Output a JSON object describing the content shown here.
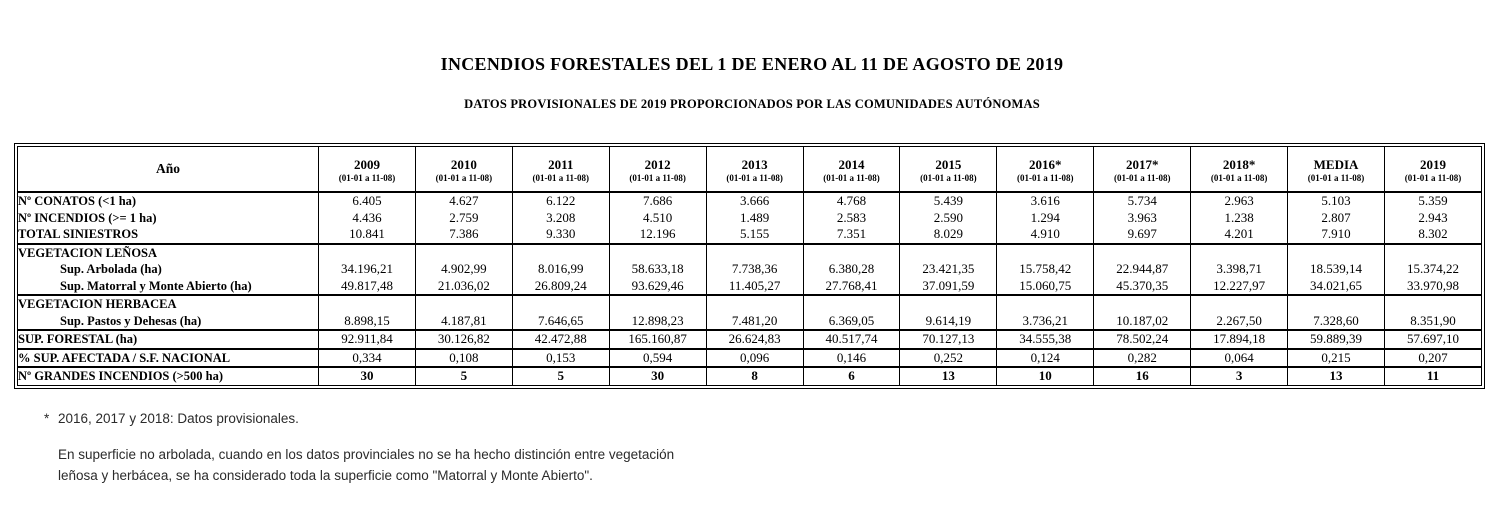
{
  "title": "INCENDIOS FORESTALES DEL 1 DE ENERO AL 11 DE AGOSTO DE 2019",
  "subtitle": "DATOS PROVISIONALES DE 2019 PROPORCIONADOS POR LAS COMUNIDADES AUTÓNOMAS",
  "table": {
    "corner_label": "Año",
    "period_label": "(01-01 a 11-08)",
    "year_columns": [
      "2009",
      "2010",
      "2011",
      "2012",
      "2013",
      "2014",
      "2015",
      "2016*",
      "2017*",
      "2018*",
      "MEDIA",
      "2019"
    ],
    "rows": [
      {
        "label": "Nº CONATOS (<1 ha)",
        "kind": "data",
        "values": [
          "6.405",
          "4.627",
          "6.122",
          "7.686",
          "3.666",
          "4.768",
          "5.439",
          "3.616",
          "5.734",
          "2.963",
          "5.103",
          "5.359"
        ]
      },
      {
        "label": "Nº INCENDIOS (>= 1 ha)",
        "kind": "data",
        "values": [
          "4.436",
          "2.759",
          "3.208",
          "4.510",
          "1.489",
          "2.583",
          "2.590",
          "1.294",
          "3.963",
          "1.238",
          "2.807",
          "2.943"
        ]
      },
      {
        "label": "TOTAL SINIESTROS",
        "kind": "data",
        "values": [
          "10.841",
          "7.386",
          "9.330",
          "12.196",
          "5.155",
          "7.351",
          "8.029",
          "4.910",
          "9.697",
          "4.201",
          "7.910",
          "8.302"
        ]
      },
      {
        "label": "VEGETACION LEÑOSA",
        "kind": "section",
        "values": [
          "",
          "",
          "",
          "",
          "",
          "",
          "",
          "",
          "",
          "",
          "",
          ""
        ]
      },
      {
        "label": "Sup. Arbolada (ha)",
        "kind": "sub",
        "values": [
          "34.196,21",
          "4.902,99",
          "8.016,99",
          "58.633,18",
          "7.738,36",
          "6.380,28",
          "23.421,35",
          "15.758,42",
          "22.944,87",
          "3.398,71",
          "18.539,14",
          "15.374,22"
        ]
      },
      {
        "label": "Sup. Matorral y Monte Abierto (ha)",
        "kind": "sub",
        "values": [
          "49.817,48",
          "21.036,02",
          "26.809,24",
          "93.629,46",
          "11.405,27",
          "27.768,41",
          "37.091,59",
          "15.060,75",
          "45.370,35",
          "12.227,97",
          "34.021,65",
          "33.970,98"
        ]
      },
      {
        "label": "VEGETACION HERBACEA",
        "kind": "section",
        "values": [
          "",
          "",
          "",
          "",
          "",
          "",
          "",
          "",
          "",
          "",
          "",
          ""
        ]
      },
      {
        "label": "Sup. Pastos y Dehesas (ha)",
        "kind": "sub",
        "values": [
          "8.898,15",
          "4.187,81",
          "7.646,65",
          "12.898,23",
          "7.481,20",
          "6.369,05",
          "9.614,19",
          "3.736,21",
          "10.187,02",
          "2.267,50",
          "7.328,60",
          "8.351,90"
        ]
      },
      {
        "label": "SUP. FORESTAL (ha)",
        "kind": "summary",
        "values": [
          "92.911,84",
          "30.126,82",
          "42.472,88",
          "165.160,87",
          "26.624,83",
          "40.517,74",
          "70.127,13",
          "34.555,38",
          "78.502,24",
          "17.894,18",
          "59.889,39",
          "57.697,10"
        ]
      },
      {
        "label": "% SUP. AFECTADA / S.F. NACIONAL",
        "kind": "summary",
        "values": [
          "0,334",
          "0,108",
          "0,153",
          "0,594",
          "0,096",
          "0,146",
          "0,252",
          "0,124",
          "0,282",
          "0,064",
          "0,215",
          "0,207"
        ]
      },
      {
        "label": "Nº GRANDES INCENDIOS (>500 ha)",
        "kind": "total",
        "values": [
          "30",
          "5",
          "5",
          "30",
          "8",
          "6",
          "13",
          "10",
          "16",
          "3",
          "13",
          "11"
        ]
      }
    ]
  },
  "notes": {
    "asterisk": "*",
    "provisional": "2016, 2017 y 2018: Datos provisionales.",
    "methodology": "En superficie no arbolada, cuando en los datos provinciales no se ha hecho distinción entre vegetación leñosa y herbácea, se ha considerado toda la superficie como \"Matorral y Monte Abierto\"."
  }
}
